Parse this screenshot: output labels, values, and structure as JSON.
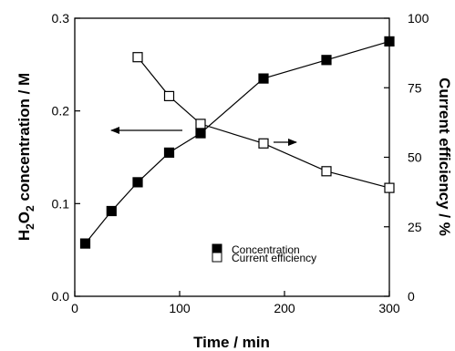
{
  "chart_data": {
    "type": "scatter",
    "x_axis": {
      "label": "Time / min",
      "range": [
        0,
        300
      ],
      "ticks": [
        0,
        100,
        200,
        300
      ],
      "tick_labels": [
        "0",
        "100",
        "200",
        "300"
      ]
    },
    "y_axis_left": {
      "label_parts": [
        "H",
        "2",
        "O",
        "2",
        " concentration / M"
      ],
      "range": [
        0,
        0.3
      ],
      "ticks": [
        0,
        0.1,
        0.2,
        0.3
      ],
      "tick_labels": [
        "0.0",
        "0.1",
        "0.2",
        "0.3"
      ]
    },
    "y_axis_right": {
      "label": "Current efficiency / %",
      "range": [
        0,
        100
      ],
      "ticks": [
        0,
        25,
        50,
        75,
        100
      ],
      "tick_labels": [
        "0",
        "25",
        "50",
        "75",
        "100"
      ]
    },
    "series": [
      {
        "name": "Concentration",
        "axis": "left",
        "marker": "filled-square",
        "color": "#000000",
        "x": [
          10,
          35,
          60,
          90,
          120,
          180,
          240,
          300
        ],
        "y": [
          0.057,
          0.092,
          0.123,
          0.155,
          0.176,
          0.235,
          0.255,
          0.275
        ]
      },
      {
        "name": "Current efficiency",
        "axis": "right",
        "marker": "open-square",
        "color": "#000000",
        "x": [
          60,
          90,
          120,
          180,
          240,
          300
        ],
        "y": [
          86,
          72,
          62,
          55,
          45,
          39
        ]
      }
    ],
    "legend": {
      "placement": "lower-right",
      "entries": [
        "Concentration",
        "Current efficiency"
      ]
    },
    "annotations": [
      {
        "type": "arrow",
        "direction": "left",
        "meaning": "Concentration uses the left axis"
      },
      {
        "type": "arrow",
        "direction": "right",
        "meaning": "Current efficiency uses the right axis"
      }
    ],
    "grid": false
  }
}
